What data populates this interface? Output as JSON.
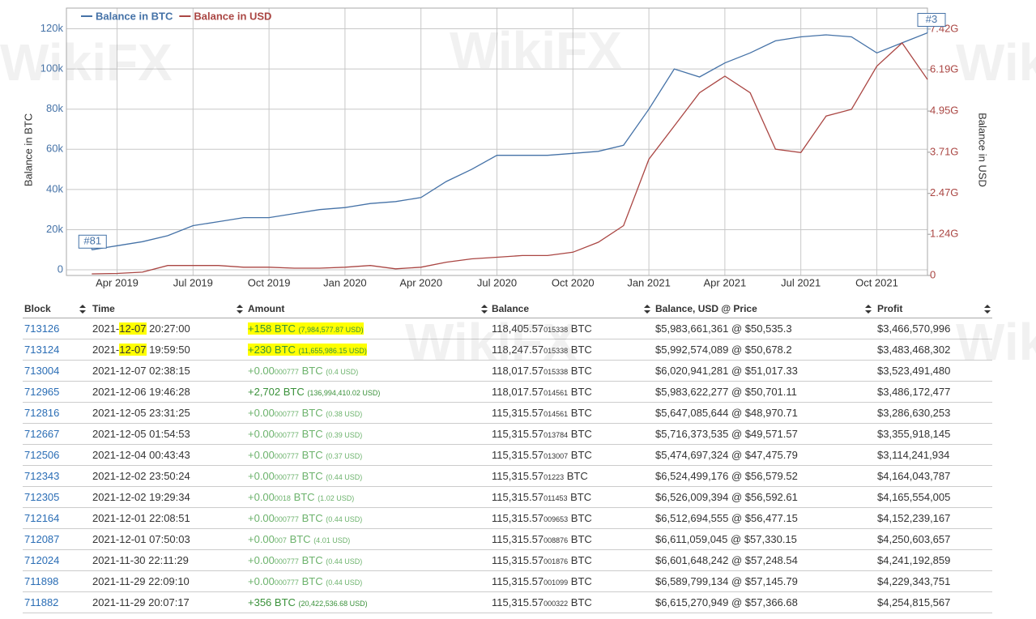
{
  "chart_data": {
    "type": "line",
    "x": [
      "2019-03",
      "2019-04",
      "2019-05",
      "2019-06",
      "2019-07",
      "2019-08",
      "2019-09",
      "2019-10",
      "2019-11",
      "2019-12",
      "2020-01",
      "2020-02",
      "2020-03",
      "2020-04",
      "2020-05",
      "2020-06",
      "2020-07",
      "2020-08",
      "2020-09",
      "2020-10",
      "2020-11",
      "2020-12",
      "2021-01",
      "2021-02",
      "2021-03",
      "2021-04",
      "2021-05",
      "2021-06",
      "2021-07",
      "2021-08",
      "2021-09",
      "2021-10",
      "2021-11",
      "2021-12"
    ],
    "series": [
      {
        "name": "Balance in BTC",
        "color": "#4572a7",
        "values": [
          10000,
          12000,
          14000,
          17000,
          22000,
          24000,
          26000,
          26000,
          28000,
          30000,
          31000,
          33000,
          34000,
          36000,
          44000,
          50000,
          57000,
          57000,
          57000,
          58000,
          59000,
          62000,
          80000,
          100000,
          96000,
          103000,
          108000,
          114000,
          116000,
          117000,
          116000,
          108000,
          113000,
          118000
        ]
      },
      {
        "name": "Balance in USD",
        "color": "#aa4643",
        "axis": "y2",
        "values": [
          50000000,
          60000000,
          100000000,
          300000000,
          300000000,
          300000000,
          250000000,
          250000000,
          220000000,
          220000000,
          250000000,
          300000000,
          200000000,
          250000000,
          400000000,
          500000000,
          550000000,
          600000000,
          600000000,
          700000000,
          1000000000,
          1500000000,
          3500000000,
          4500000000,
          5500000000,
          6000000000,
          5500000000,
          3800000000,
          3700000000,
          4800000000,
          5000000000,
          6300000000,
          7000000000,
          5900000000
        ]
      }
    ],
    "xlim": [
      "2019-02",
      "2021-12"
    ],
    "xticks": [
      {
        "value": "2019-04",
        "label": "Apr 2019"
      },
      {
        "value": "2019-07",
        "label": "Jul 2019"
      },
      {
        "value": "2019-10",
        "label": "Oct 2019"
      },
      {
        "value": "2020-01",
        "label": "Jan 2020"
      },
      {
        "value": "2020-04",
        "label": "Apr 2020"
      },
      {
        "value": "2020-07",
        "label": "Jul 2020"
      },
      {
        "value": "2020-10",
        "label": "Oct 2020"
      },
      {
        "value": "2021-01",
        "label": "Jan 2021"
      },
      {
        "value": "2021-04",
        "label": "Apr 2021"
      },
      {
        "value": "2021-07",
        "label": "Jul 2021"
      },
      {
        "value": "2021-10",
        "label": "Oct 2021"
      }
    ],
    "ylim": [
      -2800,
      130300
    ],
    "yticks": [
      0,
      {
        "value": 20000,
        "label": "20k"
      },
      {
        "value": 40000,
        "label": "40k"
      },
      {
        "value": 60000,
        "label": "60k"
      },
      {
        "value": 80000,
        "label": "80k"
      },
      {
        "value": 100000,
        "label": "100k"
      },
      {
        "value": 120000,
        "label": "120k"
      }
    ],
    "y2lim": [
      0,
      8050000000
    ],
    "y2ticks": [
      0,
      {
        "value": 1240000000,
        "label": "1.24G"
      },
      {
        "value": 2470000000,
        "label": "2.47G"
      },
      {
        "value": 3710000000,
        "label": "3.71G"
      },
      {
        "value": 4950000000,
        "label": "4.95G"
      },
      {
        "value": 6190000000,
        "label": "6.19G"
      },
      {
        "value": 7420000000,
        "label": "7.42G"
      }
    ],
    "ylabel": "Balance in BTC",
    "y2label": "Balance in USD",
    "flags": [
      "#81",
      "#3"
    ],
    "grid": true,
    "legend": "top-left"
  },
  "watermark": "WikiFX",
  "table": {
    "headers": [
      "Block",
      "Time",
      "Amount",
      "Balance",
      "Balance, USD @ Price",
      "Profit"
    ],
    "rows": [
      {
        "block": "713126",
        "time": {
          "year": "2021-",
          "day": "12-07",
          "clock": "20:27:00"
        },
        "highlight": true,
        "amount": {
          "main": "+158",
          "unit": "BTC",
          "usd": "(7,984,577.87 USD)"
        },
        "balance": {
          "main": "118,405.57",
          "small": "015338",
          "unit": "BTC"
        },
        "usd_price": "$5,983,661,361 @ $50,535.3",
        "profit": "$3,466,570,996"
      },
      {
        "block": "713124",
        "time": {
          "year": "2021-",
          "day": "12-07",
          "clock": "19:59:50"
        },
        "highlight": true,
        "amount": {
          "main": "+230",
          "unit": "BTC",
          "usd": "(11,655,986.15 USD)"
        },
        "balance": {
          "main": "118,247.57",
          "small": "015338",
          "unit": "BTC"
        },
        "usd_price": "$5,992,574,089 @ $50,678.2",
        "profit": "$3,483,468,302"
      },
      {
        "block": "713004",
        "time": {
          "year": "2021-",
          "day": "12-07",
          "clock": "02:38:15"
        },
        "amount": {
          "main": "+0.00",
          "small": "000777",
          "unit": "BTC",
          "usd": "(0.4 USD)"
        },
        "balance": {
          "main": "118,017.57",
          "small": "015338",
          "unit": "BTC"
        },
        "usd_price": "$6,020,941,281 @ $51,017.33",
        "profit": "$3,523,491,480"
      },
      {
        "block": "712965",
        "time": {
          "year": "2021-",
          "day": "12-06",
          "clock": "19:46:28"
        },
        "amount": {
          "main": "+2,702",
          "unit": "BTC",
          "usd": "(136,994,410.02 USD)"
        },
        "balance": {
          "main": "118,017.57",
          "small": "014561",
          "unit": "BTC"
        },
        "usd_price": "$5,983,622,277 @ $50,701.11",
        "profit": "$3,486,172,477"
      },
      {
        "block": "712816",
        "time": {
          "year": "2021-",
          "day": "12-05",
          "clock": "23:31:25"
        },
        "amount": {
          "main": "+0.00",
          "small": "000777",
          "unit": "BTC",
          "usd": "(0.38 USD)"
        },
        "balance": {
          "main": "115,315.57",
          "small": "014561",
          "unit": "BTC"
        },
        "usd_price": "$5,647,085,644 @ $48,970.71",
        "profit": "$3,286,630,253"
      },
      {
        "block": "712667",
        "time": {
          "year": "2021-",
          "day": "12-05",
          "clock": "01:54:53"
        },
        "amount": {
          "main": "+0.00",
          "small": "000777",
          "unit": "BTC",
          "usd": "(0.39 USD)"
        },
        "balance": {
          "main": "115,315.57",
          "small": "013784",
          "unit": "BTC"
        },
        "usd_price": "$5,716,373,535 @ $49,571.57",
        "profit": "$3,355,918,145"
      },
      {
        "block": "712506",
        "time": {
          "year": "2021-",
          "day": "12-04",
          "clock": "00:43:43"
        },
        "amount": {
          "main": "+0.00",
          "small": "000777",
          "unit": "BTC",
          "usd": "(0.37 USD)"
        },
        "balance": {
          "main": "115,315.57",
          "small": "013007",
          "unit": "BTC"
        },
        "usd_price": "$5,474,697,324 @ $47,475.79",
        "profit": "$3,114,241,934"
      },
      {
        "block": "712343",
        "time": {
          "year": "2021-",
          "day": "12-02",
          "clock": "23:50:24"
        },
        "amount": {
          "main": "+0.00",
          "small": "000777",
          "unit": "BTC",
          "usd": "(0.44 USD)"
        },
        "balance": {
          "main": "115,315.57",
          "small": "01223",
          "unit": "BTC"
        },
        "usd_price": "$6,524,499,176 @ $56,579.52",
        "profit": "$4,164,043,787"
      },
      {
        "block": "712305",
        "time": {
          "year": "2021-",
          "day": "12-02",
          "clock": "19:29:34"
        },
        "amount": {
          "main": "+0.00",
          "small": "0018",
          "unit": "BTC",
          "usd": "(1.02 USD)"
        },
        "balance": {
          "main": "115,315.57",
          "small": "011453",
          "unit": "BTC"
        },
        "usd_price": "$6,526,009,394 @ $56,592.61",
        "profit": "$4,165,554,005"
      },
      {
        "block": "712164",
        "time": {
          "year": "2021-",
          "day": "12-01",
          "clock": "22:08:51"
        },
        "amount": {
          "main": "+0.00",
          "small": "000777",
          "unit": "BTC",
          "usd": "(0.44 USD)"
        },
        "balance": {
          "main": "115,315.57",
          "small": "009653",
          "unit": "BTC"
        },
        "usd_price": "$6,512,694,555 @ $56,477.15",
        "profit": "$4,152,239,167"
      },
      {
        "block": "712087",
        "time": {
          "year": "2021-",
          "day": "12-01",
          "clock": "07:50:03"
        },
        "amount": {
          "main": "+0.00",
          "small": "007",
          "unit": "BTC",
          "usd": "(4.01 USD)"
        },
        "balance": {
          "main": "115,315.57",
          "small": "008876",
          "unit": "BTC"
        },
        "usd_price": "$6,611,059,045 @ $57,330.15",
        "profit": "$4,250,603,657"
      },
      {
        "block": "712024",
        "time": {
          "year": "2021-",
          "day": "11-30",
          "clock": "22:11:29"
        },
        "amount": {
          "main": "+0.00",
          "small": "000777",
          "unit": "BTC",
          "usd": "(0.44 USD)"
        },
        "balance": {
          "main": "115,315.57",
          "small": "001876",
          "unit": "BTC"
        },
        "usd_price": "$6,601,648,242 @ $57,248.54",
        "profit": "$4,241,192,859"
      },
      {
        "block": "711898",
        "time": {
          "year": "2021-",
          "day": "11-29",
          "clock": "22:09:10"
        },
        "amount": {
          "main": "+0.00",
          "small": "000777",
          "unit": "BTC",
          "usd": "(0.44 USD)"
        },
        "balance": {
          "main": "115,315.57",
          "small": "001099",
          "unit": "BTC"
        },
        "usd_price": "$6,589,799,134 @ $57,145.79",
        "profit": "$4,229,343,751"
      },
      {
        "block": "711882",
        "time": {
          "year": "2021-",
          "day": "11-29",
          "clock": "20:07:17"
        },
        "amount": {
          "main": "+356",
          "unit": "BTC",
          "usd": "(20,422,536.68 USD)"
        },
        "balance": {
          "main": "115,315.57",
          "small": "000322",
          "unit": "BTC"
        },
        "usd_price": "$6,615,270,949 @ $57,366.68",
        "profit": "$4,254,815,567"
      }
    ]
  }
}
